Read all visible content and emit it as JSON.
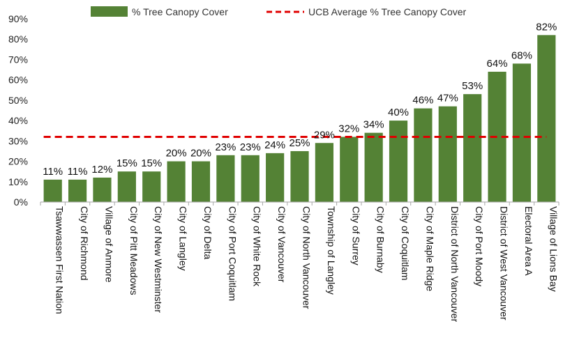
{
  "chart_data": {
    "type": "bar",
    "categories": [
      "Tsawwassen First Nation",
      "City of Richmond",
      "Village of Anmore",
      "City of Pitt Meadows",
      "City of New Westminster",
      "City of Langley",
      "City of Delta",
      "City of Port Coquitlam",
      "City of White Rock",
      "City of Vancouver",
      "City of North Vancouver",
      "Township of Langley",
      "City of Surrey",
      "City of Burnaby",
      "City of Coquitlam",
      "City of Maple Ridge",
      "District of North Vancouver",
      "City of Port Moody",
      "District of West Vancouver",
      "Electoral Area A",
      "Village of Lions Bay"
    ],
    "series": [
      {
        "name": "% Tree Canopy Cover",
        "values": [
          11,
          11,
          12,
          15,
          15,
          20,
          20,
          23,
          23,
          24,
          25,
          29,
          32,
          34,
          40,
          46,
          47,
          53,
          64,
          68,
          82
        ],
        "labels": [
          "11%",
          "11%",
          "12%",
          "15%",
          "15%",
          "20%",
          "20%",
          "23%",
          "23%",
          "24%",
          "25%",
          "29%",
          "32%",
          "34%",
          "40%",
          "46%",
          "47%",
          "53%",
          "64%",
          "68%",
          "82%"
        ]
      }
    ],
    "reference_line": {
      "name": "UCB Average % Tree Canopy Cover",
      "value": 32
    },
    "ylim": [
      0,
      90
    ],
    "yticks": [
      "0%",
      "10%",
      "20%",
      "30%",
      "40%",
      "50%",
      "60%",
      "70%",
      "80%",
      "90%"
    ],
    "legend_position": "top",
    "grid": false,
    "colors": {
      "bar": "#548235",
      "reference": "#e00000",
      "axis": "#a6a6a6"
    }
  }
}
